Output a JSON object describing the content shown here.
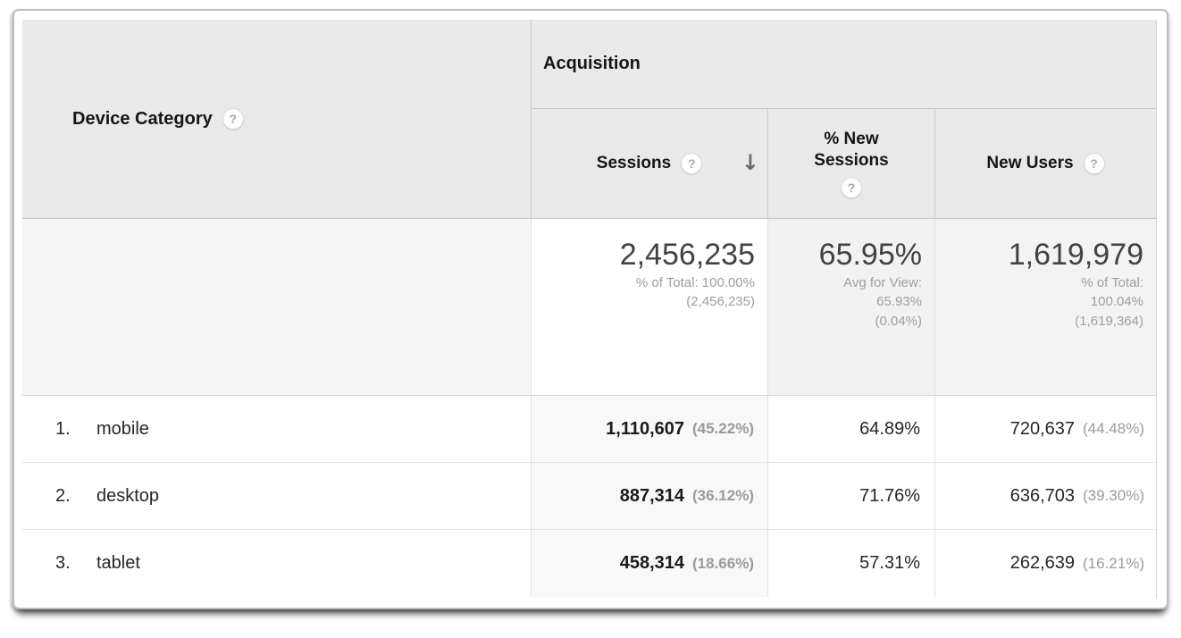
{
  "icons": {
    "help": "?",
    "sort_descending": "↓"
  },
  "table": {
    "dimension_header": "Device Category",
    "group_header": "Acquisition",
    "columns": {
      "sessions": "Sessions",
      "percent_new_sessions": "% New Sessions",
      "new_users": "New Users"
    },
    "totals": {
      "sessions_value": "2,456,235",
      "sessions_note": "% of Total: 100.00%\n(2,456,235)",
      "percent_new_sessions_value": "65.95%",
      "percent_new_sessions_note": "Avg for View:\n65.93%\n(0.04%)",
      "new_users_value": "1,619,979",
      "new_users_note": "% of Total:\n100.04%\n(1,619,364)"
    },
    "rows": [
      {
        "index": "1.",
        "device": "mobile",
        "sessions": "1,110,607",
        "sessions_share": "(45.22%)",
        "percent_new_sessions": "64.89%",
        "new_users": "720,637",
        "new_users_share": "(44.48%)"
      },
      {
        "index": "2.",
        "device": "desktop",
        "sessions": "887,314",
        "sessions_share": "(36.12%)",
        "percent_new_sessions": "71.76%",
        "new_users": "636,703",
        "new_users_share": "(39.30%)"
      },
      {
        "index": "3.",
        "device": "tablet",
        "sessions": "458,314",
        "sessions_share": "(18.66%)",
        "percent_new_sessions": "57.31%",
        "new_users": "262,639",
        "new_users_share": "(16.21%)"
      }
    ]
  }
}
